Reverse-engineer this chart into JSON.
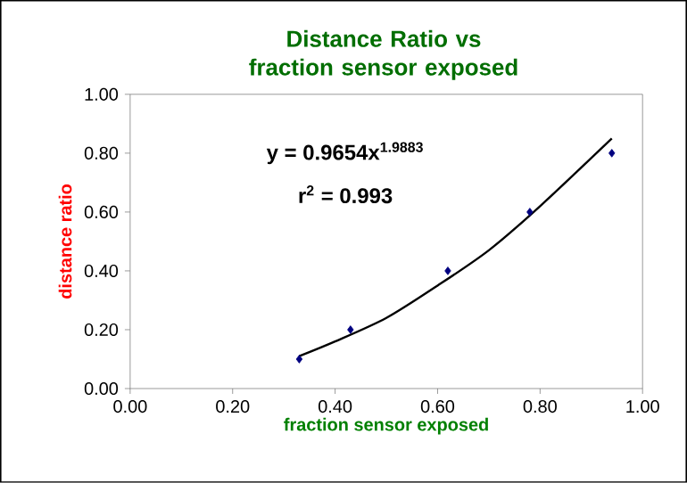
{
  "chart_data": {
    "type": "scatter",
    "title": "Distance Ratio vs fraction sensor exposed",
    "xlabel": "fraction sensor exposed",
    "ylabel": "distance ratio",
    "xlim": [
      0,
      1
    ],
    "ylim": [
      0,
      1
    ],
    "xticks": [
      {
        "value": 0,
        "label": "0.00"
      },
      {
        "value": 0.2,
        "label": "0.20"
      },
      {
        "value": 0.4,
        "label": "0.40"
      },
      {
        "value": 0.6,
        "label": "0.60"
      },
      {
        "value": 0.8,
        "label": "0.80"
      },
      {
        "value": 1,
        "label": "1.00"
      }
    ],
    "yticks": [
      {
        "value": 0,
        "label": "0.00"
      },
      {
        "value": 0.2,
        "label": "0.20"
      },
      {
        "value": 0.4,
        "label": "0.40"
      },
      {
        "value": 0.6,
        "label": "0.60"
      },
      {
        "value": 0.8,
        "label": "0.80"
      },
      {
        "value": 1,
        "label": "1.00"
      }
    ],
    "series": [
      {
        "marker": "diamond",
        "color": "#000080",
        "x": [
          0.33,
          0.43,
          0.62,
          0.78,
          0.94
        ],
        "values": [
          0.1,
          0.2,
          0.4,
          0.6,
          0.8
        ]
      },
      {
        "type": "line",
        "color": "#000000",
        "x": [
          0.33,
          0.4,
          0.5,
          0.6,
          0.7,
          0.8,
          0.94
        ],
        "values": [
          0.11,
          0.16,
          0.24,
          0.35,
          0.47,
          0.62,
          0.85
        ]
      }
    ],
    "annotations": [
      "y = 0.9654x$^{1.9883}$",
      "r$^{2}$ = 0.993"
    ]
  }
}
